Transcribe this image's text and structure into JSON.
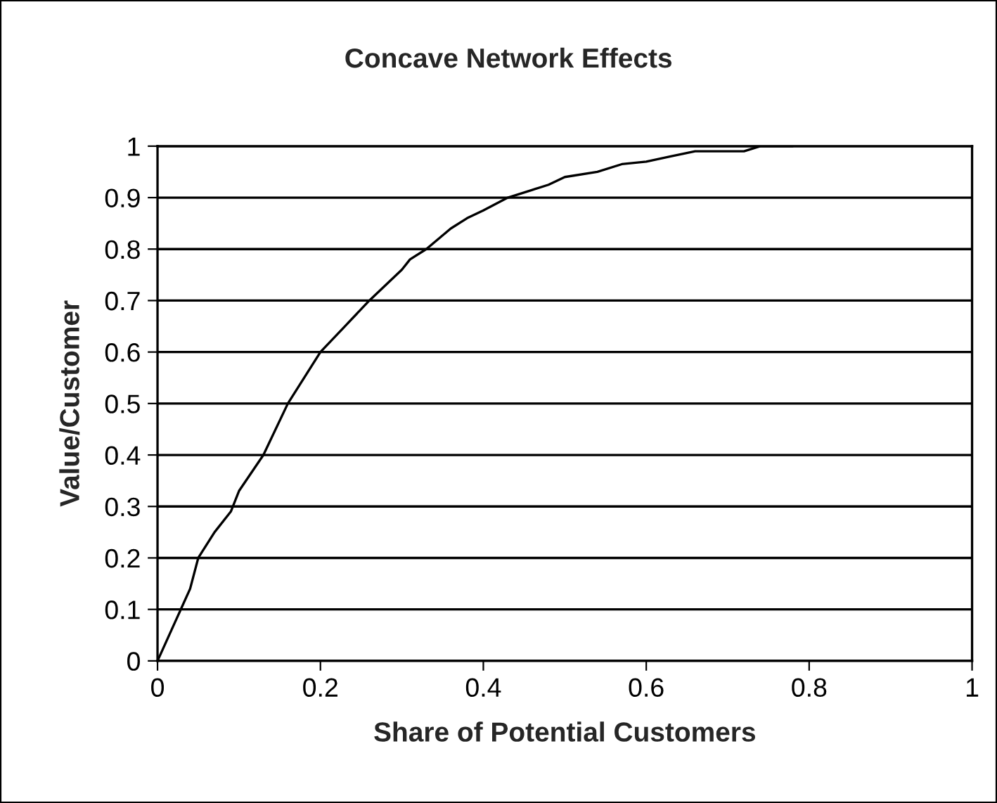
{
  "chart_data": {
    "type": "line",
    "title": "Concave Network Effects",
    "xlabel": "Share of Potential Customers",
    "ylabel": "Value/Customer",
    "x": [
      0,
      0.02,
      0.04,
      0.05,
      0.07,
      0.09,
      0.1,
      0.13,
      0.16,
      0.2,
      0.23,
      0.26,
      0.3,
      0.31,
      0.33,
      0.36,
      0.38,
      0.4,
      0.43,
      0.46,
      0.48,
      0.5,
      0.54,
      0.57,
      0.6,
      0.63,
      0.66,
      0.72,
      0.74,
      0.78
    ],
    "series": [
      {
        "color": "#000000",
        "values": [
          0,
          0.07,
          0.14,
          0.2,
          0.25,
          0.29,
          0.33,
          0.4,
          0.5,
          0.6,
          0.65,
          0.7,
          0.76,
          0.78,
          0.8,
          0.84,
          0.86,
          0.875,
          0.9,
          0.915,
          0.925,
          0.94,
          0.95,
          0.965,
          0.97,
          0.98,
          0.99,
          0.99,
          1.0,
          1.0
        ]
      }
    ],
    "xlim": [
      0,
      1
    ],
    "xticks": [
      0,
      0.2,
      0.4,
      0.6,
      0.8,
      1
    ],
    "ylim": [
      0,
      1
    ],
    "yticks": [
      0,
      0.1,
      0.2,
      0.3,
      0.4,
      0.5,
      0.6,
      0.7,
      0.8,
      0.9,
      1
    ],
    "grid": "y",
    "legend": false,
    "marker": "none",
    "line_style": "solid"
  }
}
